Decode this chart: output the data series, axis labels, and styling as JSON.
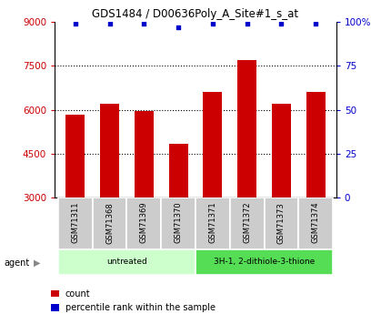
{
  "title": "GDS1484 / D00636Poly_A_Site#1_s_at",
  "samples": [
    "GSM71311",
    "GSM71368",
    "GSM71369",
    "GSM71370",
    "GSM71371",
    "GSM71372",
    "GSM71373",
    "GSM71374"
  ],
  "counts": [
    5850,
    6200,
    5950,
    4850,
    6600,
    7700,
    6200,
    6600
  ],
  "percentile_ranks": [
    99,
    99,
    99,
    97,
    99,
    99,
    99,
    99
  ],
  "bar_color": "#cc0000",
  "dot_color": "#0000cc",
  "ylim_left": [
    3000,
    9000
  ],
  "ylim_right": [
    0,
    100
  ],
  "yticks_left": [
    3000,
    4500,
    6000,
    7500,
    9000
  ],
  "yticks_right": [
    0,
    25,
    50,
    75,
    100
  ],
  "ytick_labels_right": [
    "0",
    "25",
    "50",
    "75",
    "100%"
  ],
  "grid_yticks": [
    4500,
    6000,
    7500
  ],
  "groups": [
    {
      "label": "untreated",
      "start": 0,
      "end": 3,
      "color": "#ccffcc"
    },
    {
      "label": "3H-1, 2-dithiole-3-thione",
      "start": 4,
      "end": 7,
      "color": "#55dd55"
    }
  ],
  "agent_label": "agent",
  "legend": [
    {
      "label": "count",
      "color": "#cc0000"
    },
    {
      "label": "percentile rank within the sample",
      "color": "#0000cc"
    }
  ],
  "background_color": "#ffffff",
  "tick_label_color_left": "#cc0000",
  "tick_label_color_right": "#0000cc",
  "bar_width": 0.55,
  "sample_bg_color": "#cccccc"
}
